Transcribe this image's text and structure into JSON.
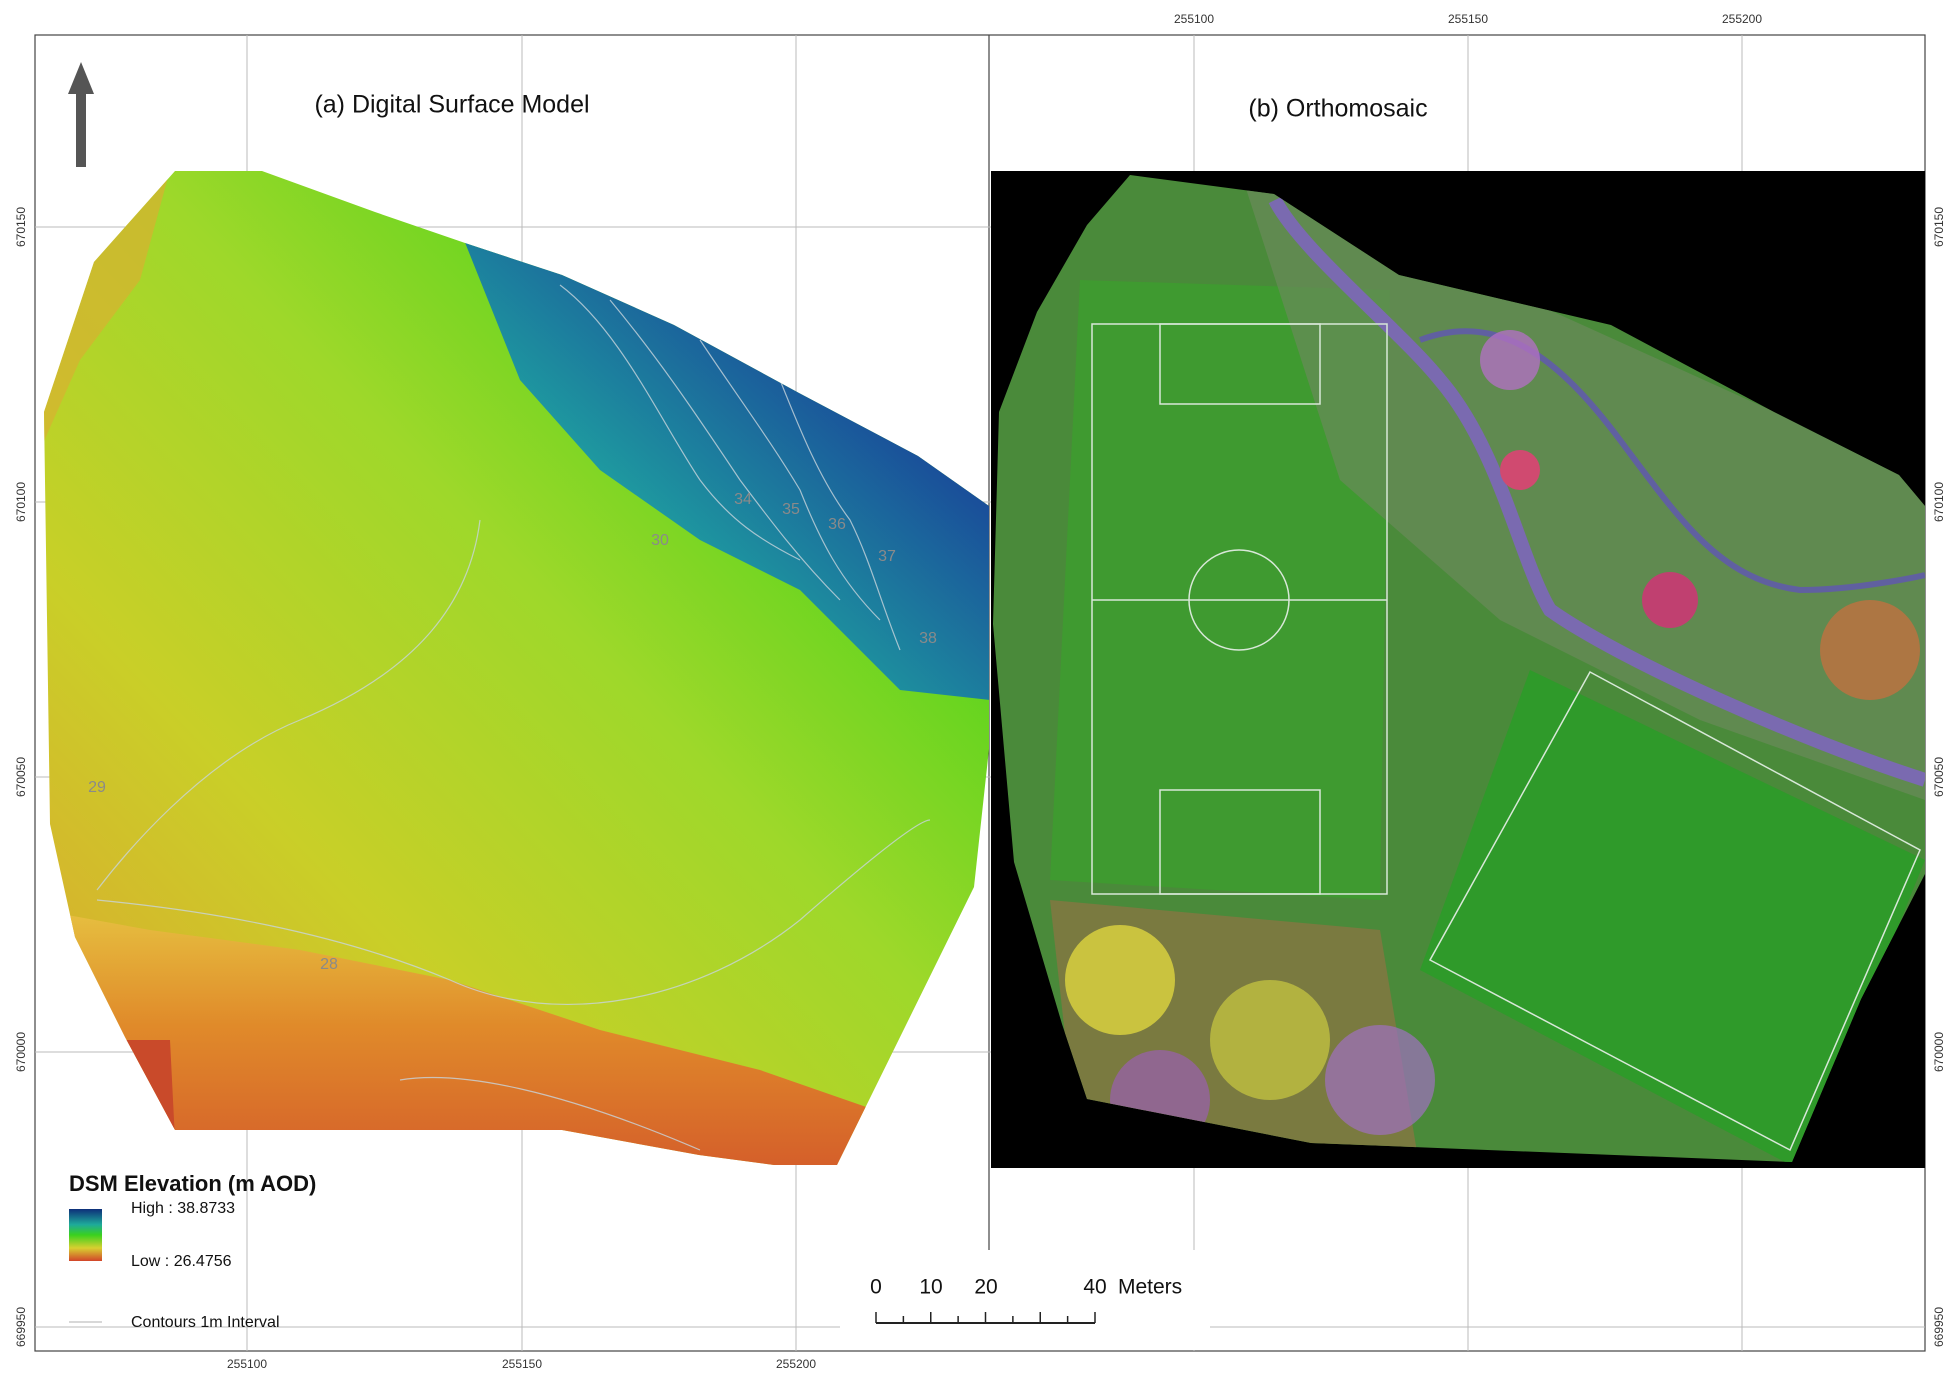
{
  "panels": [
    {
      "title": "(a) Digital Surface Model",
      "contour_labels": [
        "29",
        "28",
        "30",
        "34",
        "35",
        "36",
        "37",
        "38"
      ]
    },
    {
      "title": "(b) Orthomosaic"
    }
  ],
  "grid": {
    "bottom_labels": [
      "255100",
      "255150",
      "255200"
    ],
    "top_labels": [
      "255100",
      "255150",
      "255200"
    ],
    "left_labels": [
      "670150",
      "670100",
      "670050",
      "670000",
      "669950"
    ],
    "right_labels": [
      "670150",
      "670100",
      "670050",
      "670000",
      "669950"
    ]
  },
  "legend": {
    "title": "DSM Elevation (m AOD)",
    "high": "High : 38.8733",
    "low": "Low : 26.4756",
    "contours": "Contours 1m Interval"
  },
  "scale_bar": {
    "labels": [
      "0",
      "10",
      "20",
      "40"
    ],
    "unit": "Meters"
  }
}
